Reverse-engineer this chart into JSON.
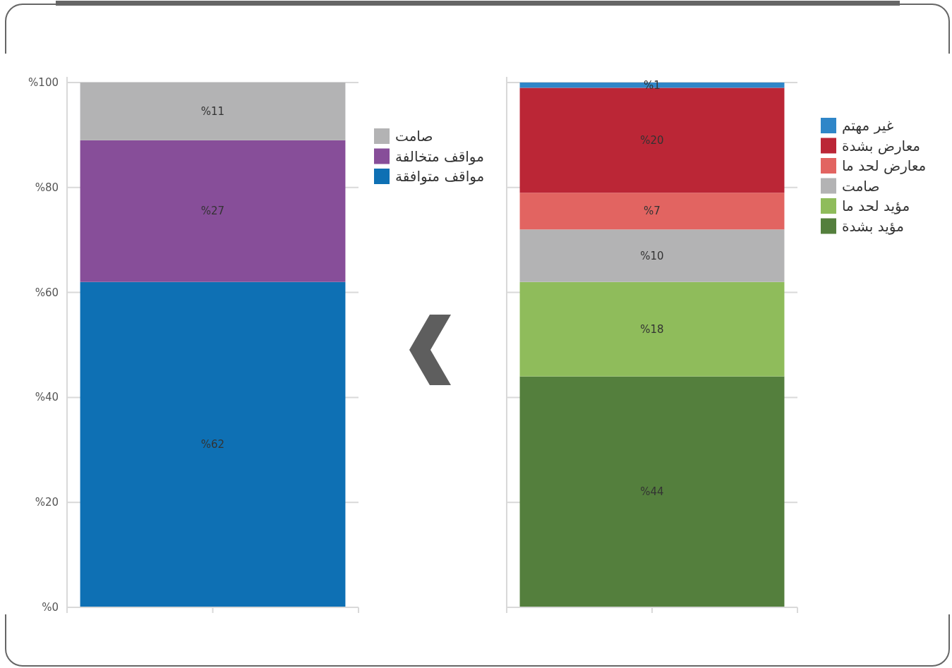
{
  "chart_data": [
    {
      "type": "bar",
      "stacked": true,
      "categories": [
        null
      ],
      "ylim": [
        0,
        100
      ],
      "yticks": [
        {
          "value": 0,
          "label": "%0"
        },
        {
          "value": 20,
          "label": "%20"
        },
        {
          "value": 40,
          "label": "%40"
        },
        {
          "value": 60,
          "label": "%60"
        },
        {
          "value": 80,
          "label": "%80"
        },
        {
          "value": 100,
          "label": "%100"
        }
      ],
      "grid": "y",
      "legend": "right",
      "series": [
        {
          "name": "مواقف متوافقة",
          "color": "#0e70b4",
          "values": [
            62
          ],
          "value_labels": [
            "%62"
          ]
        },
        {
          "name": "مواقف متخالفة",
          "color": "#874e99",
          "values": [
            27
          ],
          "value_labels": [
            "%27"
          ]
        },
        {
          "name": "صامت",
          "color": "#b3b3b4",
          "values": [
            11
          ],
          "value_labels": [
            "%11"
          ]
        }
      ]
    },
    {
      "type": "bar",
      "stacked": true,
      "categories": [
        null
      ],
      "ylim": [
        0,
        100
      ],
      "yticks": [
        {
          "value": 0,
          "label": null
        },
        {
          "value": 20,
          "label": null
        },
        {
          "value": 40,
          "label": null
        },
        {
          "value": 60,
          "label": null
        },
        {
          "value": 80,
          "label": null
        },
        {
          "value": 100,
          "label": null
        }
      ],
      "grid": "y",
      "legend": "right",
      "series": [
        {
          "name": "مؤيد بشدة",
          "color": "#547f3d",
          "values": [
            44
          ],
          "value_labels": [
            "%44"
          ]
        },
        {
          "name": "مؤيد لحد ما",
          "color": "#8fbc5b",
          "values": [
            18
          ],
          "value_labels": [
            "%18"
          ]
        },
        {
          "name": "صامت",
          "color": "#b3b3b4",
          "values": [
            10
          ],
          "value_labels": [
            "%10"
          ]
        },
        {
          "name": "معارض لحد ما",
          "color": "#e26461",
          "values": [
            7
          ],
          "value_labels": [
            "%7"
          ]
        },
        {
          "name": "معارض بشدة",
          "color": "#bb2636",
          "values": [
            20
          ],
          "value_labels": [
            "%20"
          ]
        },
        {
          "name": "غير مهتم",
          "color": "#2f86c8",
          "values": [
            1
          ],
          "value_labels": [
            "%1"
          ]
        }
      ]
    }
  ]
}
